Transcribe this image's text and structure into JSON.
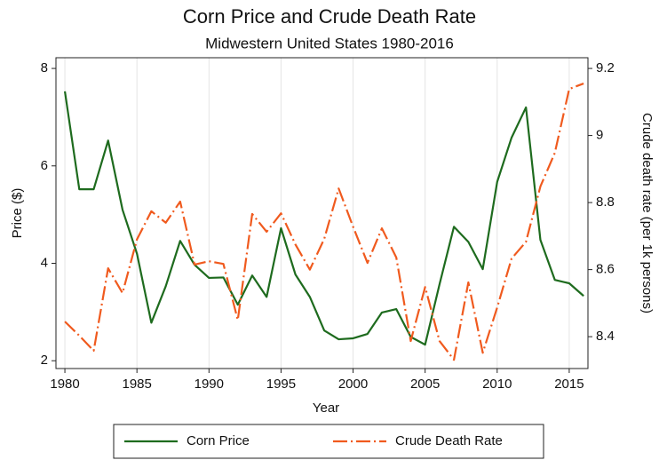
{
  "chart_data": {
    "type": "line",
    "title": "Corn Price and Crude Death Rate",
    "subtitle": "Midwestern United States 1980-2016",
    "x_label": "Year",
    "y_label": "Price ($)",
    "y2_label": "Crude death rate (per 1k persons)",
    "x": [
      1980,
      1981,
      1982,
      1983,
      1984,
      1985,
      1986,
      1987,
      1988,
      1989,
      1990,
      1991,
      1992,
      1993,
      1994,
      1995,
      1996,
      1997,
      1998,
      1999,
      2000,
      2001,
      2002,
      2003,
      2004,
      2005,
      2006,
      2007,
      2008,
      2009,
      2010,
      2011,
      2012,
      2013,
      2014,
      2015,
      2016
    ],
    "series": [
      {
        "name": "Corn Price",
        "color": "#1e6b1e",
        "axis": "y",
        "dash": "solid",
        "values": [
          7.53,
          5.52,
          5.52,
          6.52,
          5.1,
          4.2,
          2.78,
          3.53,
          4.46,
          3.97,
          3.7,
          3.71,
          3.15,
          3.75,
          3.31,
          4.72,
          3.77,
          3.31,
          2.62,
          2.44,
          2.46,
          2.55,
          2.99,
          3.06,
          2.49,
          2.33,
          3.57,
          4.75,
          4.44,
          3.88,
          5.67,
          6.58,
          7.2,
          4.48,
          3.66,
          3.59,
          3.33
        ]
      },
      {
        "name": "Crude Death Rate",
        "color": "#f05a1e",
        "axis": "y2",
        "dash": "dash-dot",
        "values": [
          8.445,
          8.403,
          8.358,
          8.604,
          8.53,
          8.69,
          8.774,
          8.74,
          8.803,
          8.615,
          8.625,
          8.617,
          8.45,
          8.766,
          8.713,
          8.768,
          8.675,
          8.6,
          8.692,
          8.842,
          8.728,
          8.62,
          8.723,
          8.636,
          8.387,
          8.548,
          8.387,
          8.331,
          8.562,
          8.352,
          8.487,
          8.633,
          8.683,
          8.848,
          8.948,
          9.139,
          9.155
        ]
      }
    ],
    "xlim": [
      1979.38,
      2016.3
    ],
    "xticks": [
      1980,
      1985,
      1990,
      1995,
      2000,
      2005,
      2010,
      2015
    ],
    "ylim": [
      1.84,
      8.22
    ],
    "yticks": [
      2,
      4,
      6,
      8
    ],
    "y2lim": [
      8.305,
      9.232
    ],
    "y2ticks": [
      8.4,
      8.6,
      8.8,
      9,
      9.2
    ],
    "grid": "x",
    "legend": "bottom"
  }
}
